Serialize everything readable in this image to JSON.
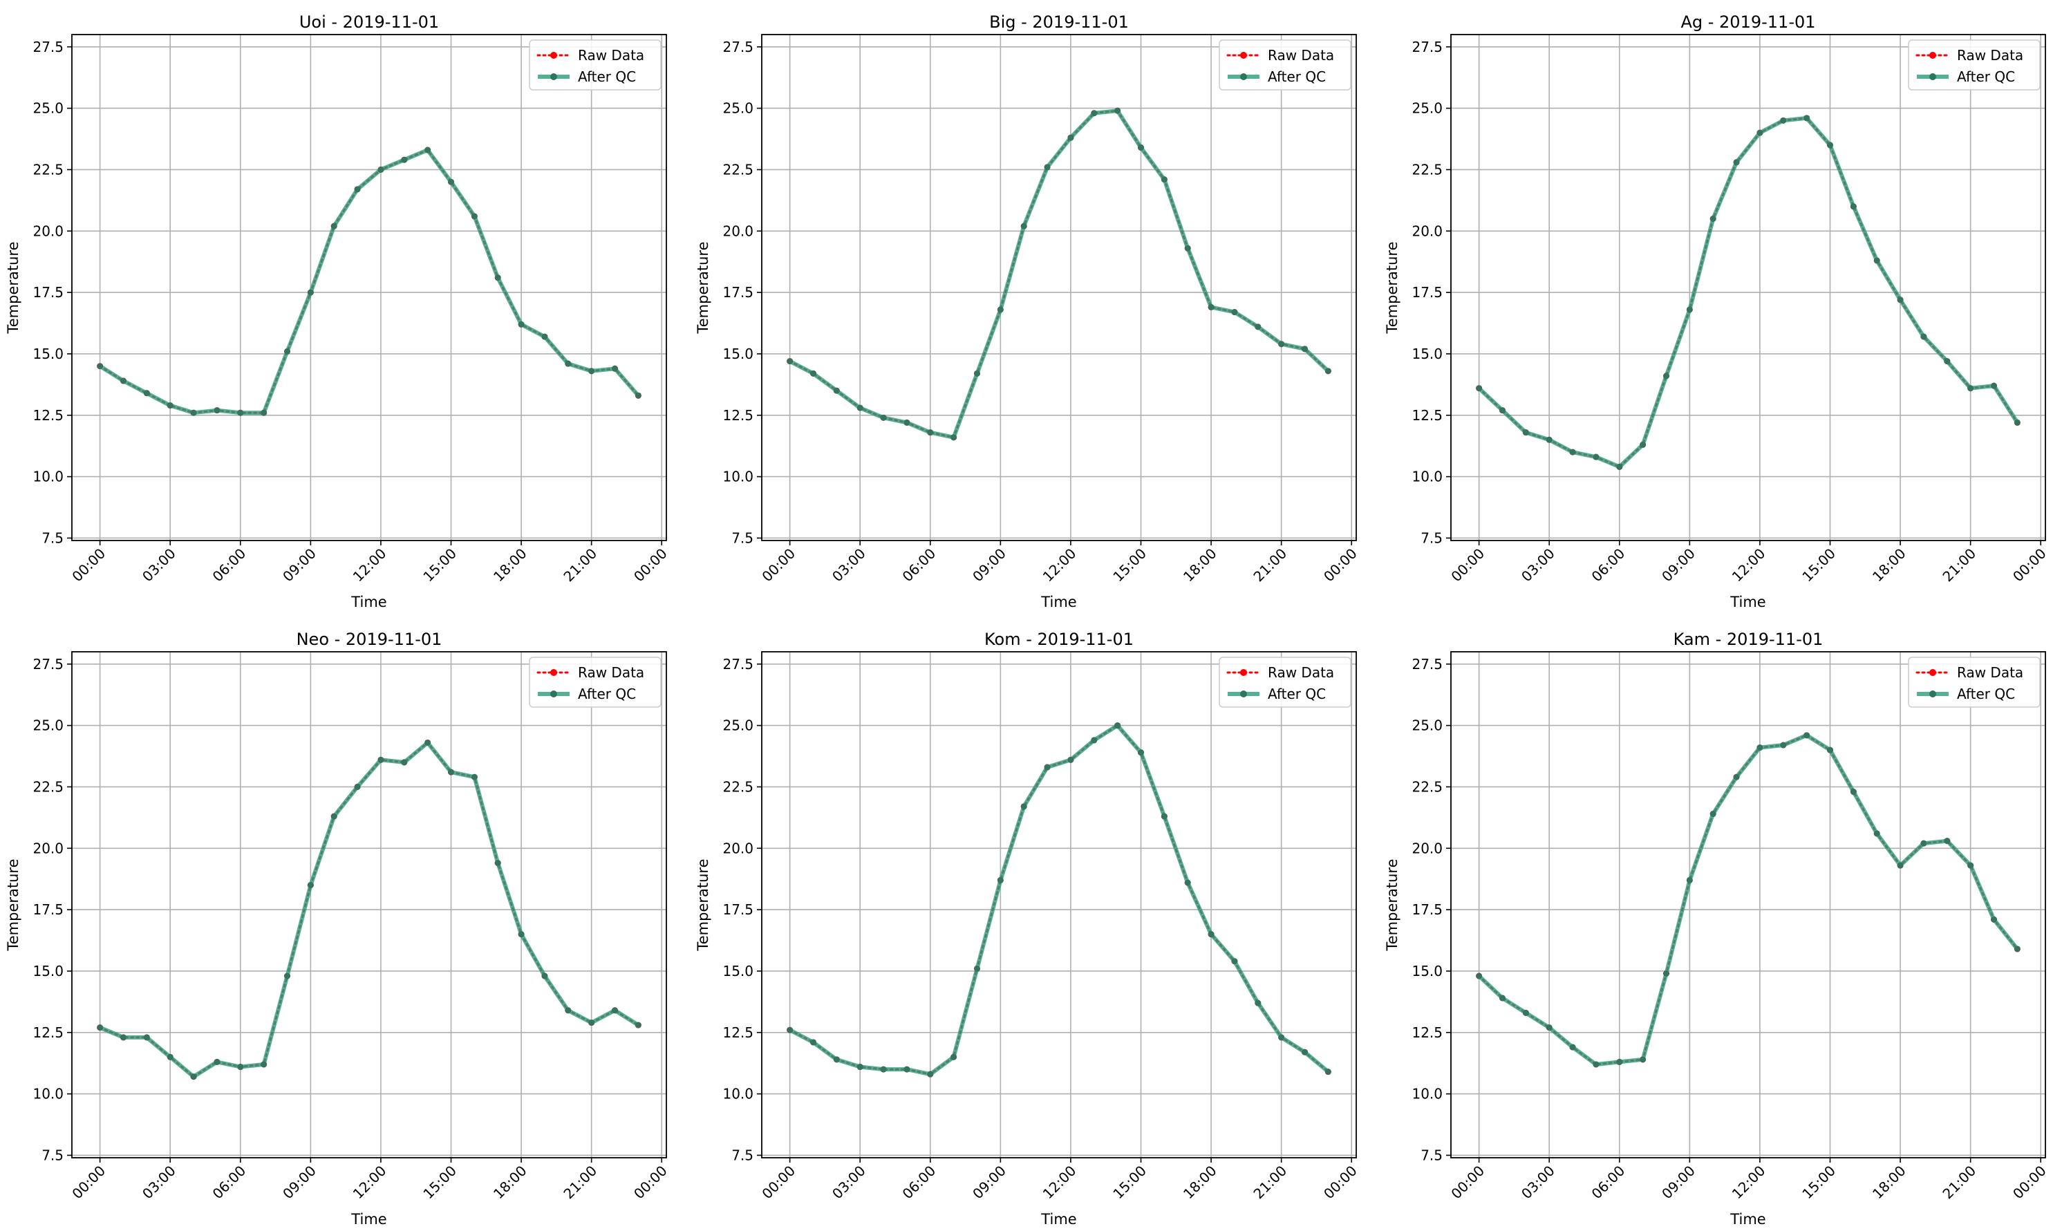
{
  "chart_data": [
    {
      "type": "line",
      "title": "Uoi - 2019-11-01",
      "xlabel": "Time",
      "ylabel": "Temperature",
      "xlim": [
        "00:00",
        "24:00"
      ],
      "ylim": [
        7.5,
        28.0
      ],
      "x_ticks": [
        "00:00",
        "03:00",
        "06:00",
        "09:00",
        "12:00",
        "15:00",
        "18:00",
        "21:00",
        "00:00"
      ],
      "y_ticks": [
        "7.5",
        "10.0",
        "12.5",
        "15.0",
        "17.5",
        "20.0",
        "22.5",
        "25.0",
        "27.5"
      ],
      "grid": true,
      "legend": "top-right",
      "x": [
        "00:00",
        "01:00",
        "02:00",
        "03:00",
        "04:00",
        "05:00",
        "06:00",
        "07:00",
        "08:00",
        "09:00",
        "10:00",
        "11:00",
        "12:00",
        "13:00",
        "14:00",
        "15:00",
        "16:00",
        "17:00",
        "18:00",
        "19:00",
        "20:00",
        "21:00",
        "22:00",
        "23:00"
      ],
      "series": [
        {
          "name": "Raw Data",
          "color": "#ff0000",
          "style": "dotted",
          "values": [
            14.5,
            13.9,
            13.4,
            12.9,
            12.6,
            12.7,
            12.6,
            12.6,
            15.1,
            17.5,
            20.2,
            21.7,
            22.5,
            22.9,
            23.3,
            22.0,
            20.6,
            18.1,
            16.2,
            15.7,
            14.6,
            14.3,
            14.4,
            13.3
          ]
        },
        {
          "name": "After QC",
          "color": "#2a9d7c",
          "style": "solid",
          "values": [
            14.5,
            13.9,
            13.4,
            12.9,
            12.6,
            12.7,
            12.6,
            12.6,
            15.1,
            17.5,
            20.2,
            21.7,
            22.5,
            22.9,
            23.3,
            22.0,
            20.6,
            18.1,
            16.2,
            15.7,
            14.6,
            14.3,
            14.4,
            13.3
          ]
        }
      ]
    },
    {
      "type": "line",
      "title": "Big - 2019-11-01",
      "xlabel": "Time",
      "ylabel": "Temperature",
      "xlim": [
        "00:00",
        "24:00"
      ],
      "ylim": [
        7.5,
        28.0
      ],
      "x_ticks": [
        "00:00",
        "03:00",
        "06:00",
        "09:00",
        "12:00",
        "15:00",
        "18:00",
        "21:00",
        "00:00"
      ],
      "y_ticks": [
        "7.5",
        "10.0",
        "12.5",
        "15.0",
        "17.5",
        "20.0",
        "22.5",
        "25.0",
        "27.5"
      ],
      "grid": true,
      "legend": "top-right",
      "x": [
        "00:00",
        "01:00",
        "02:00",
        "03:00",
        "04:00",
        "05:00",
        "06:00",
        "07:00",
        "08:00",
        "09:00",
        "10:00",
        "11:00",
        "12:00",
        "13:00",
        "14:00",
        "15:00",
        "16:00",
        "17:00",
        "18:00",
        "19:00",
        "20:00",
        "21:00",
        "22:00",
        "23:00"
      ],
      "series": [
        {
          "name": "Raw Data",
          "color": "#ff0000",
          "style": "dotted",
          "values": [
            14.7,
            14.2,
            13.5,
            12.8,
            12.4,
            12.2,
            11.8,
            11.6,
            14.2,
            16.8,
            20.2,
            22.6,
            23.8,
            24.8,
            24.9,
            23.4,
            22.1,
            19.3,
            16.9,
            16.7,
            16.1,
            15.4,
            15.2,
            14.3
          ]
        },
        {
          "name": "After QC",
          "color": "#2a9d7c",
          "style": "solid",
          "values": [
            14.7,
            14.2,
            13.5,
            12.8,
            12.4,
            12.2,
            11.8,
            11.6,
            14.2,
            16.8,
            20.2,
            22.6,
            23.8,
            24.8,
            24.9,
            23.4,
            22.1,
            19.3,
            16.9,
            16.7,
            16.1,
            15.4,
            15.2,
            14.3
          ]
        }
      ]
    },
    {
      "type": "line",
      "title": "Ag - 2019-11-01",
      "xlabel": "Time",
      "ylabel": "Temperature",
      "xlim": [
        "00:00",
        "24:00"
      ],
      "ylim": [
        7.5,
        28.0
      ],
      "x_ticks": [
        "00:00",
        "03:00",
        "06:00",
        "09:00",
        "12:00",
        "15:00",
        "18:00",
        "21:00",
        "00:00"
      ],
      "y_ticks": [
        "7.5",
        "10.0",
        "12.5",
        "15.0",
        "17.5",
        "20.0",
        "22.5",
        "25.0",
        "27.5"
      ],
      "grid": true,
      "legend": "top-right",
      "x": [
        "00:00",
        "01:00",
        "02:00",
        "03:00",
        "04:00",
        "05:00",
        "06:00",
        "07:00",
        "08:00",
        "09:00",
        "10:00",
        "11:00",
        "12:00",
        "13:00",
        "14:00",
        "15:00",
        "16:00",
        "17:00",
        "18:00",
        "19:00",
        "20:00",
        "21:00",
        "22:00",
        "23:00"
      ],
      "series": [
        {
          "name": "Raw Data",
          "color": "#ff0000",
          "style": "dotted",
          "values": [
            13.6,
            12.7,
            11.8,
            11.5,
            11.0,
            10.8,
            10.4,
            11.3,
            14.1,
            16.8,
            20.5,
            22.8,
            24.0,
            24.5,
            24.6,
            23.5,
            21.0,
            18.8,
            17.2,
            15.7,
            14.7,
            13.6,
            13.7,
            12.2
          ]
        },
        {
          "name": "After QC",
          "color": "#2a9d7c",
          "style": "solid",
          "values": [
            13.6,
            12.7,
            11.8,
            11.5,
            11.0,
            10.8,
            10.4,
            11.3,
            14.1,
            16.8,
            20.5,
            22.8,
            24.0,
            24.5,
            24.6,
            23.5,
            21.0,
            18.8,
            17.2,
            15.7,
            14.7,
            13.6,
            13.7,
            12.2
          ]
        }
      ]
    },
    {
      "type": "line",
      "title": "Neo - 2019-11-01",
      "xlabel": "Time",
      "ylabel": "Temperature",
      "xlim": [
        "00:00",
        "24:00"
      ],
      "ylim": [
        7.5,
        28.0
      ],
      "x_ticks": [
        "00:00",
        "03:00",
        "06:00",
        "09:00",
        "12:00",
        "15:00",
        "18:00",
        "21:00",
        "00:00"
      ],
      "y_ticks": [
        "7.5",
        "10.0",
        "12.5",
        "15.0",
        "17.5",
        "20.0",
        "22.5",
        "25.0",
        "27.5"
      ],
      "grid": true,
      "legend": "top-right",
      "x": [
        "00:00",
        "01:00",
        "02:00",
        "03:00",
        "04:00",
        "05:00",
        "06:00",
        "07:00",
        "08:00",
        "09:00",
        "10:00",
        "11:00",
        "12:00",
        "13:00",
        "14:00",
        "15:00",
        "16:00",
        "17:00",
        "18:00",
        "19:00",
        "20:00",
        "21:00",
        "22:00",
        "23:00"
      ],
      "series": [
        {
          "name": "Raw Data",
          "color": "#ff0000",
          "style": "dotted",
          "values": [
            12.7,
            12.3,
            12.3,
            11.5,
            10.7,
            11.3,
            11.1,
            11.2,
            14.8,
            18.5,
            21.3,
            22.5,
            23.6,
            23.5,
            24.3,
            23.1,
            22.9,
            19.4,
            16.5,
            14.8,
            13.4,
            12.9,
            13.4,
            12.8
          ]
        },
        {
          "name": "After QC",
          "color": "#2a9d7c",
          "style": "solid",
          "values": [
            12.7,
            12.3,
            12.3,
            11.5,
            10.7,
            11.3,
            11.1,
            11.2,
            14.8,
            18.5,
            21.3,
            22.5,
            23.6,
            23.5,
            24.3,
            23.1,
            22.9,
            19.4,
            16.5,
            14.8,
            13.4,
            12.9,
            13.4,
            12.8
          ]
        }
      ]
    },
    {
      "type": "line",
      "title": "Kom - 2019-11-01",
      "xlabel": "Time",
      "ylabel": "Temperature",
      "xlim": [
        "00:00",
        "24:00"
      ],
      "ylim": [
        7.5,
        28.0
      ],
      "x_ticks": [
        "00:00",
        "03:00",
        "06:00",
        "09:00",
        "12:00",
        "15:00",
        "18:00",
        "21:00",
        "00:00"
      ],
      "y_ticks": [
        "7.5",
        "10.0",
        "12.5",
        "15.0",
        "17.5",
        "20.0",
        "22.5",
        "25.0",
        "27.5"
      ],
      "grid": true,
      "legend": "top-right",
      "x": [
        "00:00",
        "01:00",
        "02:00",
        "03:00",
        "04:00",
        "05:00",
        "06:00",
        "07:00",
        "08:00",
        "09:00",
        "10:00",
        "11:00",
        "12:00",
        "13:00",
        "14:00",
        "15:00",
        "16:00",
        "17:00",
        "18:00",
        "19:00",
        "20:00",
        "21:00",
        "22:00",
        "23:00"
      ],
      "series": [
        {
          "name": "Raw Data",
          "color": "#ff0000",
          "style": "dotted",
          "values": [
            12.6,
            12.1,
            11.4,
            11.1,
            11.0,
            11.0,
            10.8,
            11.5,
            15.1,
            18.7,
            21.7,
            23.3,
            23.6,
            24.4,
            25.0,
            23.9,
            21.3,
            18.6,
            16.5,
            15.4,
            13.7,
            12.3,
            11.7,
            10.9
          ]
        },
        {
          "name": "After QC",
          "color": "#2a9d7c",
          "style": "solid",
          "values": [
            12.6,
            12.1,
            11.4,
            11.1,
            11.0,
            11.0,
            10.8,
            11.5,
            15.1,
            18.7,
            21.7,
            23.3,
            23.6,
            24.4,
            25.0,
            23.9,
            21.3,
            18.6,
            16.5,
            15.4,
            13.7,
            12.3,
            11.7,
            10.9
          ]
        }
      ]
    },
    {
      "type": "line",
      "title": "Kam - 2019-11-01",
      "xlabel": "Time",
      "ylabel": "Temperature",
      "xlim": [
        "00:00",
        "24:00"
      ],
      "ylim": [
        7.5,
        28.0
      ],
      "x_ticks": [
        "00:00",
        "03:00",
        "06:00",
        "09:00",
        "12:00",
        "15:00",
        "18:00",
        "21:00",
        "00:00"
      ],
      "y_ticks": [
        "7.5",
        "10.0",
        "12.5",
        "15.0",
        "17.5",
        "20.0",
        "22.5",
        "25.0",
        "27.5"
      ],
      "grid": true,
      "legend": "top-right",
      "x": [
        "00:00",
        "01:00",
        "02:00",
        "03:00",
        "04:00",
        "05:00",
        "06:00",
        "07:00",
        "08:00",
        "09:00",
        "10:00",
        "11:00",
        "12:00",
        "13:00",
        "14:00",
        "15:00",
        "16:00",
        "17:00",
        "18:00",
        "19:00",
        "20:00",
        "21:00",
        "22:00",
        "23:00"
      ],
      "series": [
        {
          "name": "Raw Data",
          "color": "#ff0000",
          "style": "dotted",
          "values": [
            14.8,
            13.9,
            13.3,
            12.7,
            11.9,
            11.2,
            11.3,
            11.4,
            14.9,
            18.7,
            21.4,
            22.9,
            24.1,
            24.2,
            24.6,
            24.0,
            22.3,
            20.6,
            19.3,
            20.2,
            20.3,
            19.3,
            17.1,
            15.9
          ]
        },
        {
          "name": "After QC",
          "color": "#2a9d7c",
          "style": "solid",
          "values": [
            14.8,
            13.9,
            13.3,
            12.7,
            11.9,
            11.2,
            11.3,
            11.4,
            14.9,
            18.7,
            21.4,
            22.9,
            24.1,
            24.2,
            24.6,
            24.0,
            22.3,
            20.6,
            19.3,
            20.2,
            20.3,
            19.3,
            17.1,
            15.9
          ]
        }
      ]
    }
  ]
}
